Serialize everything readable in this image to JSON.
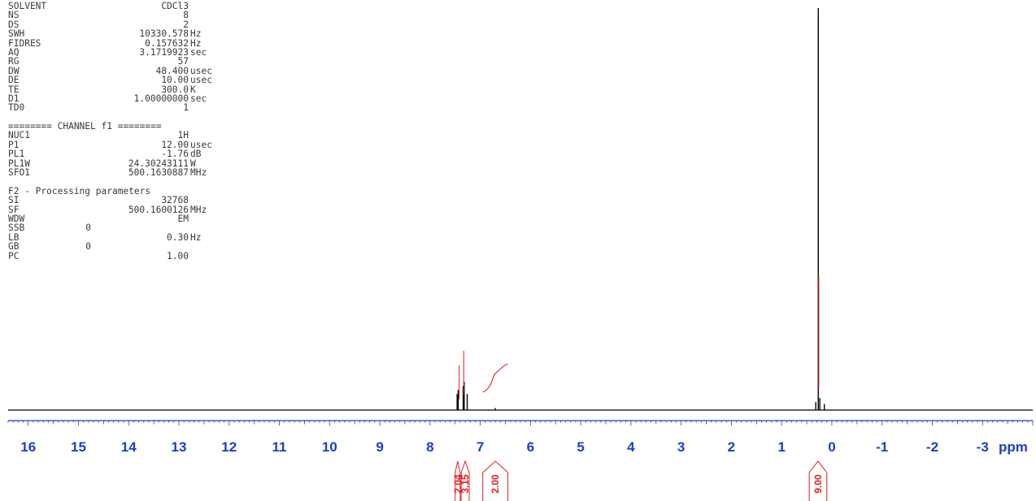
{
  "acquisition_params": [
    {
      "name": "SOLVENT",
      "value": "CDCl3",
      "unit": ""
    },
    {
      "name": "NS",
      "value": "8",
      "unit": ""
    },
    {
      "name": "DS",
      "value": "2",
      "unit": ""
    },
    {
      "name": "SWH",
      "value": "10330.578",
      "unit": "Hz"
    },
    {
      "name": "FIDRES",
      "value": "0.157632",
      "unit": "Hz"
    },
    {
      "name": "AQ",
      "value": "3.1719923",
      "unit": "sec"
    },
    {
      "name": "RG",
      "value": "57",
      "unit": ""
    },
    {
      "name": "DW",
      "value": "48.400",
      "unit": "usec"
    },
    {
      "name": "DE",
      "value": "10.00",
      "unit": "usec"
    },
    {
      "name": "TE",
      "value": "300.0",
      "unit": "K"
    },
    {
      "name": "D1",
      "value": "1.00000000",
      "unit": "sec"
    },
    {
      "name": "TD0",
      "value": "1",
      "unit": ""
    }
  ],
  "channel_header": "======== CHANNEL f1 ========",
  "channel_params": [
    {
      "name": "NUC1",
      "value": "1H",
      "unit": ""
    },
    {
      "name": "P1",
      "value": "12.00",
      "unit": "usec"
    },
    {
      "name": "PL1",
      "value": "-1.76",
      "unit": "dB"
    },
    {
      "name": "PL1W",
      "value": "24.30243111",
      "unit": "W"
    },
    {
      "name": "SFO1",
      "value": "500.1630887",
      "unit": "MHz"
    }
  ],
  "processing_header": "F2 - Processing parameters",
  "processing_params": [
    {
      "name": "SI",
      "value": "32768",
      "unit": ""
    },
    {
      "name": "SF",
      "value": "500.1600126",
      "unit": "MHz"
    },
    {
      "name": "WDW",
      "value": "EM",
      "unit": ""
    },
    {
      "name": "SSB",
      "value": "0",
      "unit": "",
      "short": true
    },
    {
      "name": "LB",
      "value": "0.30",
      "unit": "Hz"
    },
    {
      "name": "GB",
      "value": "0",
      "unit": "",
      "short": true
    },
    {
      "name": "PC",
      "value": "1.00",
      "unit": ""
    }
  ],
  "chart_data": {
    "type": "line",
    "xlabel": "ppm",
    "xlim": [
      16.4,
      -4.0
    ],
    "x_reversed": true,
    "ticks": [
      "16",
      "15",
      "14",
      "13",
      "12",
      "11",
      "10",
      "9",
      "8",
      "7",
      "6",
      "5",
      "4",
      "3",
      "2",
      "1",
      "0",
      "-1",
      "-2",
      "-3"
    ],
    "tick_values": [
      16,
      15,
      14,
      13,
      12,
      11,
      10,
      9,
      8,
      7,
      6,
      5,
      4,
      3,
      2,
      1,
      0,
      -1,
      -2,
      -3
    ],
    "peaks": [
      {
        "ppm": 7.46,
        "height": 0.04
      },
      {
        "ppm": 7.44,
        "height": 0.05
      },
      {
        "ppm": 7.34,
        "height": 0.06
      },
      {
        "ppm": 7.32,
        "height": 0.07
      },
      {
        "ppm": 7.26,
        "height": 0.04
      },
      {
        "ppm": 6.7,
        "height": 0.005
      },
      {
        "ppm": 0.32,
        "height": 0.02
      },
      {
        "ppm": 0.27,
        "height": 1.0
      },
      {
        "ppm": 0.24,
        "height": 0.03
      },
      {
        "ppm": 0.15,
        "height": 0.015
      }
    ],
    "integrals": [
      {
        "label": "2.04",
        "ppm_from": 7.5,
        "ppm_to": 7.4
      },
      {
        "label": "3.15",
        "ppm_from": 7.38,
        "ppm_to": 7.22
      },
      {
        "label": "2.00",
        "ppm_from": 6.95,
        "ppm_to": 6.45
      },
      {
        "label": "9.00",
        "ppm_from": 0.45,
        "ppm_to": 0.1
      }
    ],
    "colors": {
      "spectrum": "#000000",
      "axis": "#1c3fc4",
      "integral": "#e02020"
    }
  }
}
